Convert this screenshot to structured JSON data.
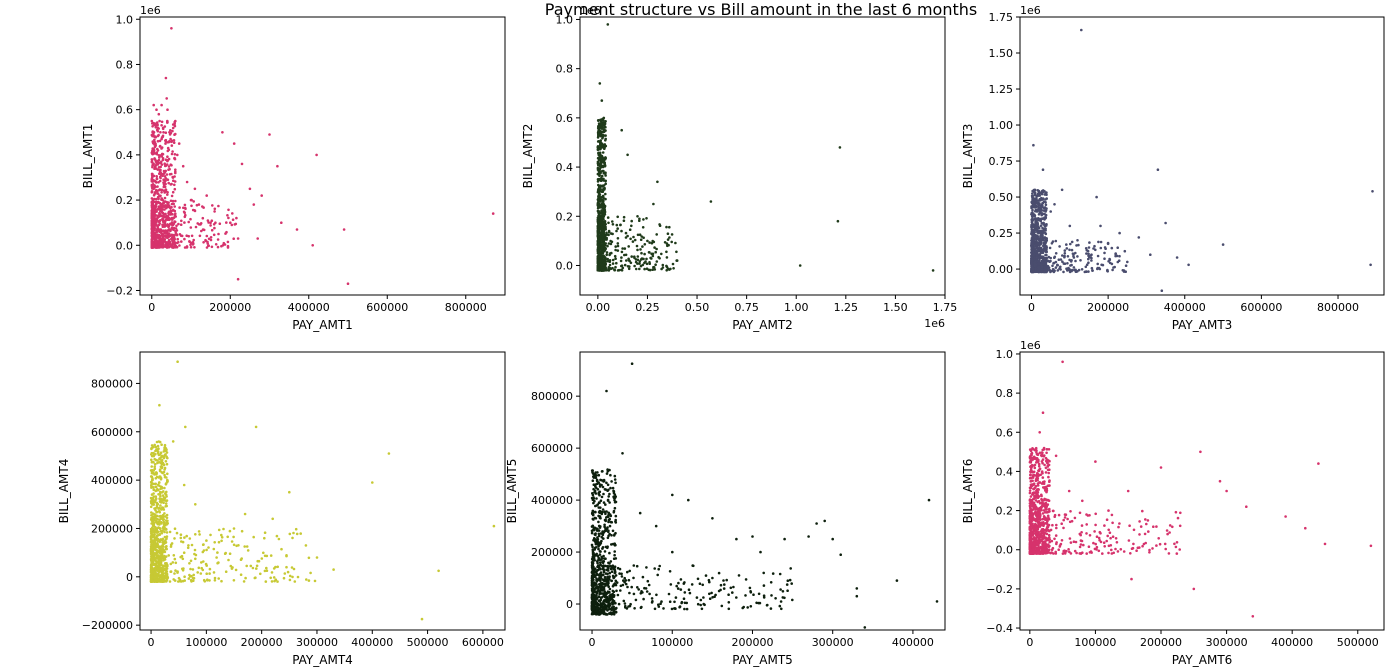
{
  "title": "Payment structure vs Bill amount in the last 6 months",
  "chart_data": [
    {
      "type": "scatter",
      "xlabel": "PAY_AMT1",
      "ylabel": "BILL_AMT1",
      "color": "#d6336c",
      "xlim": [
        -30000,
        900000
      ],
      "ylim": [
        -0.22,
        1.01
      ],
      "xticks": [
        0,
        200000,
        400000,
        600000,
        800000
      ],
      "yticks": [
        -0.2,
        0.0,
        0.2,
        0.4,
        0.6,
        0.8,
        1.0
      ],
      "ytick_labels": [
        "−0.2",
        "0.0",
        "0.2",
        "0.4",
        "0.6",
        "0.8",
        "1.0"
      ],
      "yoffset": "1e6",
      "points": [
        [
          0,
          0.55
        ],
        [
          2000,
          0.5
        ],
        [
          5000,
          0.62
        ],
        [
          8000,
          0.45
        ],
        [
          12000,
          0.6
        ],
        [
          15000,
          0.52
        ],
        [
          18000,
          0.58
        ],
        [
          20000,
          0.55
        ],
        [
          22000,
          0.5
        ],
        [
          25000,
          0.62
        ],
        [
          28000,
          0.48
        ],
        [
          30000,
          0.5
        ],
        [
          35000,
          0.45
        ],
        [
          38000,
          0.65
        ],
        [
          40000,
          0.6
        ],
        [
          45000,
          0.5
        ],
        [
          50000,
          0.96
        ],
        [
          48000,
          0.47
        ],
        [
          60000,
          0.32
        ],
        [
          65000,
          0.4
        ],
        [
          70000,
          0.45
        ],
        [
          80000,
          0.35
        ],
        [
          90000,
          0.28
        ],
        [
          100000,
          0.2
        ],
        [
          110000,
          0.25
        ],
        [
          120000,
          0.18
        ],
        [
          130000,
          0.12
        ],
        [
          140000,
          0.22
        ],
        [
          150000,
          0.1
        ],
        [
          160000,
          0.15
        ],
        [
          170000,
          0.05
        ],
        [
          180000,
          0.5
        ],
        [
          200000,
          0.1
        ],
        [
          210000,
          0.45
        ],
        [
          220000,
          0.03
        ],
        [
          230000,
          0.36
        ],
        [
          250000,
          0.25
        ],
        [
          260000,
          0.18
        ],
        [
          270000,
          0.03
        ],
        [
          280000,
          0.22
        ],
        [
          300000,
          0.49
        ],
        [
          320000,
          0.35
        ],
        [
          330000,
          0.1
        ],
        [
          370000,
          0.07
        ],
        [
          410000,
          0.0
        ],
        [
          420000,
          0.4
        ],
        [
          490000,
          0.07
        ],
        [
          500000,
          -0.17
        ],
        [
          220000,
          -0.15
        ],
        [
          870000,
          0.14
        ],
        [
          36000,
          0.74
        ]
      ],
      "dense": {
        "x": [
          0,
          60000
        ],
        "y": [
          -0.01,
          0.55
        ]
      },
      "tail": {
        "x": [
          0,
          220000
        ],
        "y": [
          -0.01,
          0.2
        ]
      }
    },
    {
      "type": "scatter",
      "xlabel": "PAY_AMT2",
      "ylabel": "BILL_AMT2",
      "color": "#1f3a1a",
      "xlim": [
        -0.09,
        1.75
      ],
      "ylim": [
        -0.12,
        1.01
      ],
      "xticks": [
        0.0,
        0.25,
        0.5,
        0.75,
        1.0,
        1.25,
        1.5,
        1.75
      ],
      "xtick_labels": [
        "0.00",
        "0.25",
        "0.50",
        "0.75",
        "1.00",
        "1.25",
        "1.50",
        "1.75"
      ],
      "yticks": [
        0.0,
        0.2,
        0.4,
        0.6,
        0.8,
        1.0
      ],
      "ytick_labels": [
        "0.0",
        "0.2",
        "0.4",
        "0.6",
        "0.8",
        "1.0"
      ],
      "xoffset": "1e6",
      "yoffset": "1e6",
      "points": [
        [
          0.05,
          0.98
        ],
        [
          0.01,
          0.74
        ],
        [
          0.02,
          0.67
        ],
        [
          0.03,
          0.6
        ],
        [
          0.12,
          0.55
        ],
        [
          0.15,
          0.45
        ],
        [
          0.3,
          0.34
        ],
        [
          0.28,
          0.25
        ],
        [
          0.2,
          0.2
        ],
        [
          0.35,
          0.08
        ],
        [
          0.4,
          0.02
        ],
        [
          0.57,
          0.26
        ],
        [
          1.22,
          0.48
        ],
        [
          1.21,
          0.18
        ],
        [
          1.02,
          0.0
        ],
        [
          1.69,
          -0.02
        ],
        [
          0.22,
          0.05
        ],
        [
          0.25,
          0.1
        ],
        [
          0.15,
          0.12
        ],
        [
          0.1,
          0.15
        ]
      ],
      "dense": {
        "x": [
          0.0,
          0.04
        ],
        "y": [
          -0.02,
          0.6
        ]
      },
      "tail": {
        "x": [
          0.0,
          0.4
        ],
        "y": [
          -0.02,
          0.2
        ]
      }
    },
    {
      "type": "scatter",
      "xlabel": "PAY_AMT3",
      "ylabel": "BILL_AMT3",
      "color": "#4a4d6e",
      "xlim": [
        -30000,
        920000
      ],
      "ylim": [
        -0.18,
        1.75
      ],
      "xticks": [
        0,
        200000,
        400000,
        600000,
        800000
      ],
      "yticks": [
        0.0,
        0.25,
        0.5,
        0.75,
        1.0,
        1.25,
        1.5,
        1.75
      ],
      "ytick_labels": [
        "0.00",
        "0.25",
        "0.50",
        "0.75",
        "1.00",
        "1.25",
        "1.50",
        "1.75"
      ],
      "yoffset": "1e6",
      "points": [
        [
          5000,
          0.86
        ],
        [
          130000,
          1.66
        ],
        [
          30000,
          0.69
        ],
        [
          80000,
          0.55
        ],
        [
          100000,
          0.3
        ],
        [
          120000,
          0.2
        ],
        [
          150000,
          0.15
        ],
        [
          180000,
          0.3
        ],
        [
          200000,
          0.18
        ],
        [
          230000,
          0.25
        ],
        [
          250000,
          0.05
        ],
        [
          280000,
          0.22
        ],
        [
          310000,
          0.1
        ],
        [
          330000,
          0.69
        ],
        [
          340000,
          -0.15
        ],
        [
          350000,
          0.32
        ],
        [
          380000,
          0.08
        ],
        [
          410000,
          0.03
        ],
        [
          500000,
          0.17
        ],
        [
          890000,
          0.54
        ],
        [
          885000,
          0.03
        ],
        [
          170000,
          0.5
        ],
        [
          60000,
          0.45
        ],
        [
          50000,
          0.4
        ]
      ],
      "dense": {
        "x": [
          0,
          40000
        ],
        "y": [
          -0.02,
          0.55
        ]
      },
      "tail": {
        "x": [
          0,
          250000
        ],
        "y": [
          -0.02,
          0.2
        ]
      }
    },
    {
      "type": "scatter",
      "xlabel": "PAY_AMT4",
      "ylabel": "BILL_AMT4",
      "color": "#c7c934",
      "xlim": [
        -20000,
        640000
      ],
      "ylim": [
        -220000,
        930000
      ],
      "xticks": [
        0,
        100000,
        200000,
        300000,
        400000,
        500000,
        600000
      ],
      "yticks": [
        -200000,
        0,
        200000,
        400000,
        600000,
        800000
      ],
      "ytick_labels": [
        "−200000",
        "0",
        "200000",
        "400000",
        "600000",
        "800000"
      ],
      "points": [
        [
          48000,
          890000
        ],
        [
          15000,
          710000
        ],
        [
          62000,
          620000
        ],
        [
          190000,
          620000
        ],
        [
          40000,
          560000
        ],
        [
          20000,
          500000
        ],
        [
          430000,
          510000
        ],
        [
          400000,
          390000
        ],
        [
          250000,
          350000
        ],
        [
          220000,
          240000
        ],
        [
          170000,
          260000
        ],
        [
          150000,
          200000
        ],
        [
          280000,
          130000
        ],
        [
          300000,
          80000
        ],
        [
          330000,
          30000
        ],
        [
          520000,
          25000
        ],
        [
          490000,
          -175000
        ],
        [
          620000,
          210000
        ],
        [
          100000,
          150000
        ],
        [
          120000,
          100000
        ],
        [
          80000,
          300000
        ],
        [
          60000,
          380000
        ]
      ],
      "dense": {
        "x": [
          0,
          30000
        ],
        "y": [
          -20000,
          560000
        ]
      },
      "tail": {
        "x": [
          0,
          300000
        ],
        "y": [
          -20000,
          200000
        ]
      }
    },
    {
      "type": "scatter",
      "xlabel": "PAY_AMT5",
      "ylabel": "BILL_AMT5",
      "color": "#0d1f0d",
      "xlim": [
        -15000,
        440000
      ],
      "ylim": [
        -100000,
        970000
      ],
      "xticks": [
        0,
        100000,
        200000,
        300000,
        400000
      ],
      "yticks": [
        0,
        200000,
        400000,
        600000,
        800000
      ],
      "points": [
        [
          50000,
          925000
        ],
        [
          18000,
          820000
        ],
        [
          38000,
          580000
        ],
        [
          100000,
          420000
        ],
        [
          120000,
          400000
        ],
        [
          150000,
          330000
        ],
        [
          180000,
          250000
        ],
        [
          200000,
          260000
        ],
        [
          210000,
          200000
        ],
        [
          240000,
          250000
        ],
        [
          270000,
          260000
        ],
        [
          280000,
          310000
        ],
        [
          290000,
          320000
        ],
        [
          300000,
          250000
        ],
        [
          310000,
          190000
        ],
        [
          330000,
          30000
        ],
        [
          340000,
          -90000
        ],
        [
          330000,
          60000
        ],
        [
          380000,
          90000
        ],
        [
          420000,
          400000
        ],
        [
          430000,
          10000
        ],
        [
          100000,
          200000
        ],
        [
          80000,
          300000
        ],
        [
          60000,
          350000
        ],
        [
          150000,
          100000
        ]
      ],
      "dense": {
        "x": [
          0,
          30000
        ],
        "y": [
          -40000,
          520000
        ]
      },
      "tail": {
        "x": [
          0,
          250000
        ],
        "y": [
          -20000,
          150000
        ]
      }
    },
    {
      "type": "scatter",
      "xlabel": "PAY_AMT6",
      "ylabel": "BILL_AMT6",
      "color": "#d6336c",
      "xlim": [
        -15000,
        540000
      ],
      "ylim": [
        -0.41,
        1.01
      ],
      "xticks": [
        0,
        100000,
        200000,
        300000,
        400000,
        500000
      ],
      "yticks": [
        -0.4,
        -0.2,
        0.0,
        0.2,
        0.4,
        0.6,
        0.8,
        1.0
      ],
      "ytick_labels": [
        "−0.4",
        "−0.2",
        "0.0",
        "0.2",
        "0.4",
        "0.6",
        "0.8",
        "1.0"
      ],
      "yoffset": "1e6",
      "points": [
        [
          50000,
          0.96
        ],
        [
          20000,
          0.7
        ],
        [
          15000,
          0.6
        ],
        [
          40000,
          0.48
        ],
        [
          100000,
          0.45
        ],
        [
          150000,
          0.3
        ],
        [
          200000,
          0.42
        ],
        [
          260000,
          0.5
        ],
        [
          290000,
          0.35
        ],
        [
          300000,
          0.3
        ],
        [
          330000,
          0.22
        ],
        [
          390000,
          0.17
        ],
        [
          420000,
          0.11
        ],
        [
          440000,
          0.44
        ],
        [
          450000,
          0.03
        ],
        [
          520000,
          0.02
        ],
        [
          250000,
          -0.2
        ],
        [
          340000,
          -0.34
        ],
        [
          155000,
          -0.15
        ],
        [
          210000,
          0.08
        ],
        [
          180000,
          0.15
        ],
        [
          120000,
          0.2
        ],
        [
          80000,
          0.25
        ],
        [
          60000,
          0.3
        ]
      ],
      "dense": {
        "x": [
          0,
          30000
        ],
        "y": [
          -0.02,
          0.52
        ]
      },
      "tail": {
        "x": [
          0,
          230000
        ],
        "y": [
          -0.02,
          0.2
        ]
      }
    }
  ]
}
